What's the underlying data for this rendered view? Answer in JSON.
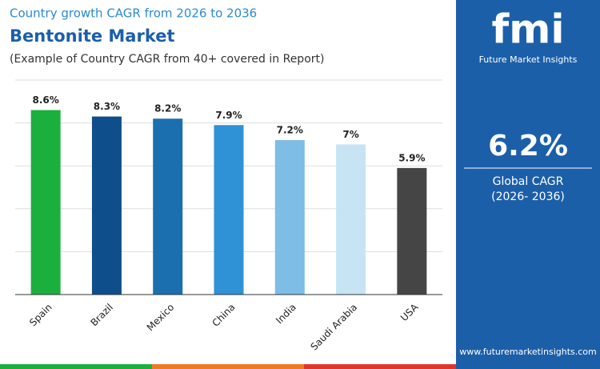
{
  "chart_data": {
    "type": "bar",
    "kicker": "Country growth CAGR from 2026 to 2036",
    "title": "Bentonite Market",
    "subtitle": "(Example of Country CAGR from 40+ covered in Report)",
    "categories": [
      "Spain",
      "Brazil",
      "Mexico",
      "China",
      "India",
      "Saudi Arabia",
      "USA"
    ],
    "values": [
      8.6,
      8.3,
      8.2,
      7.9,
      7.2,
      7,
      5.9
    ],
    "value_labels": [
      "8.6%",
      "8.3%",
      "8.2%",
      "7.9%",
      "7.2%",
      "7%",
      "5.9%"
    ],
    "colors": [
      "#1bb03d",
      "#0e4f8b",
      "#1b6fae",
      "#2f91d6",
      "#7dbde6",
      "#c6e4f4",
      "#454545"
    ],
    "ylim": [
      0,
      10
    ],
    "yticks": [
      0,
      2,
      4,
      6,
      8,
      10
    ],
    "grid": true
  },
  "panel": {
    "brand": "fmi",
    "brand_name": "Future Market Insights",
    "cagr": "6.2%",
    "cagr_label": "Global CAGR",
    "period": "(2026- 2036)",
    "website": "www.futuremarketinsights.com"
  }
}
